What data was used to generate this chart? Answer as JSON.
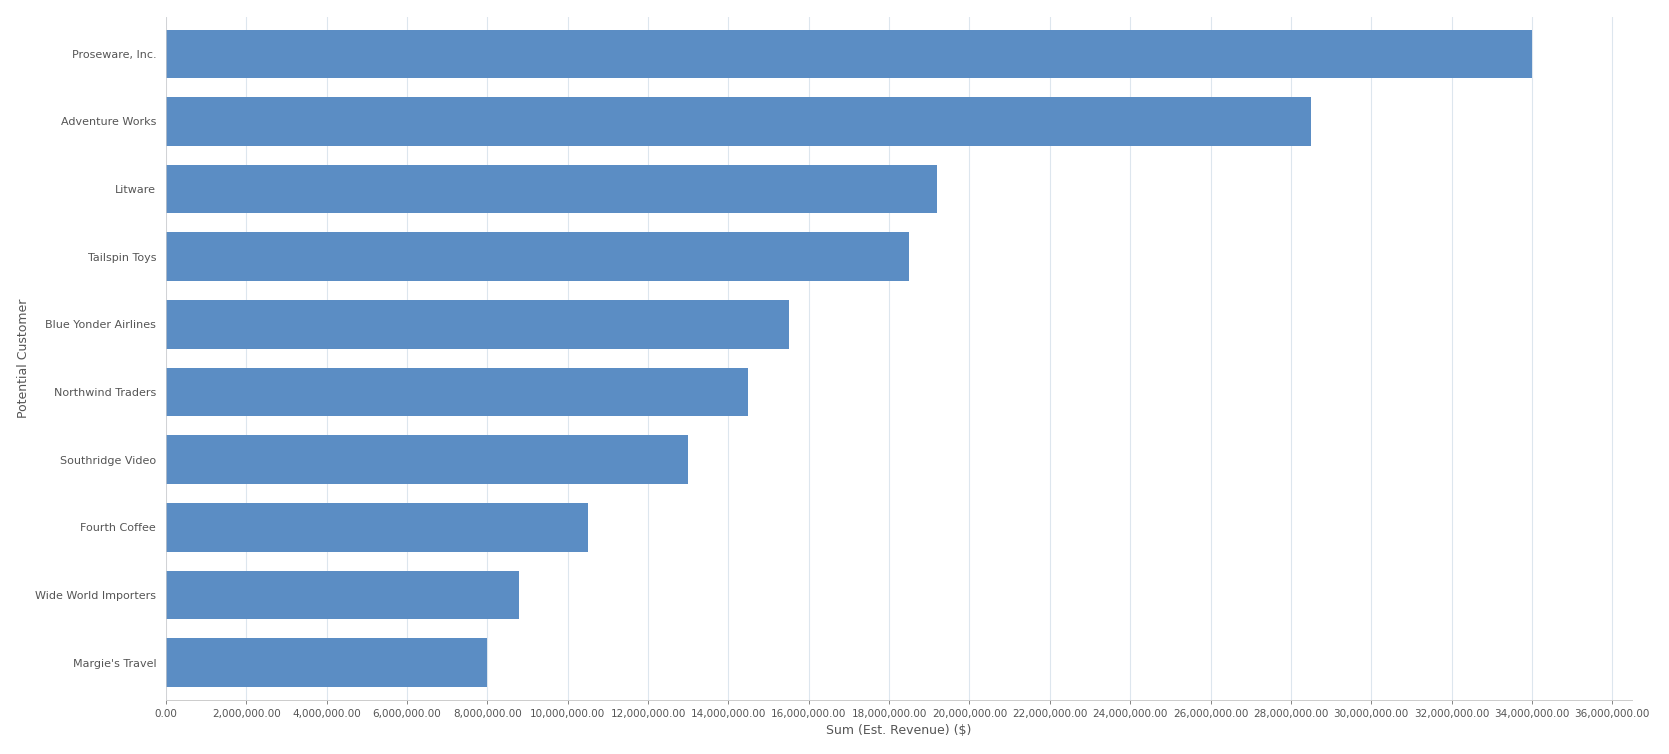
{
  "title": "",
  "xlabel": "Sum (Est. Revenue) ($)",
  "ylabel": "Potential Customer",
  "categories": [
    "Proseware, Inc.",
    "Adventure Works",
    "Litware",
    "Tailspin Toys",
    "Blue Yonder Airlines",
    "Northwind Traders",
    "Southridge Video",
    "Fourth Coffee",
    "Wide World Importers",
    "Margie's Travel"
  ],
  "values": [
    34000000,
    28500000,
    19200000,
    18500000,
    15500000,
    14500000,
    13000000,
    10500000,
    8800000,
    8000000
  ],
  "bar_color": "#5b8dc4",
  "background_color": "#ffffff",
  "xlim": [
    0,
    36500000
  ],
  "xtick_interval": 2000000,
  "bar_height": 0.72,
  "grid_color": "#dde6ee",
  "label_fontsize": 8,
  "axis_label_fontsize": 9,
  "tick_fontsize": 7.5
}
